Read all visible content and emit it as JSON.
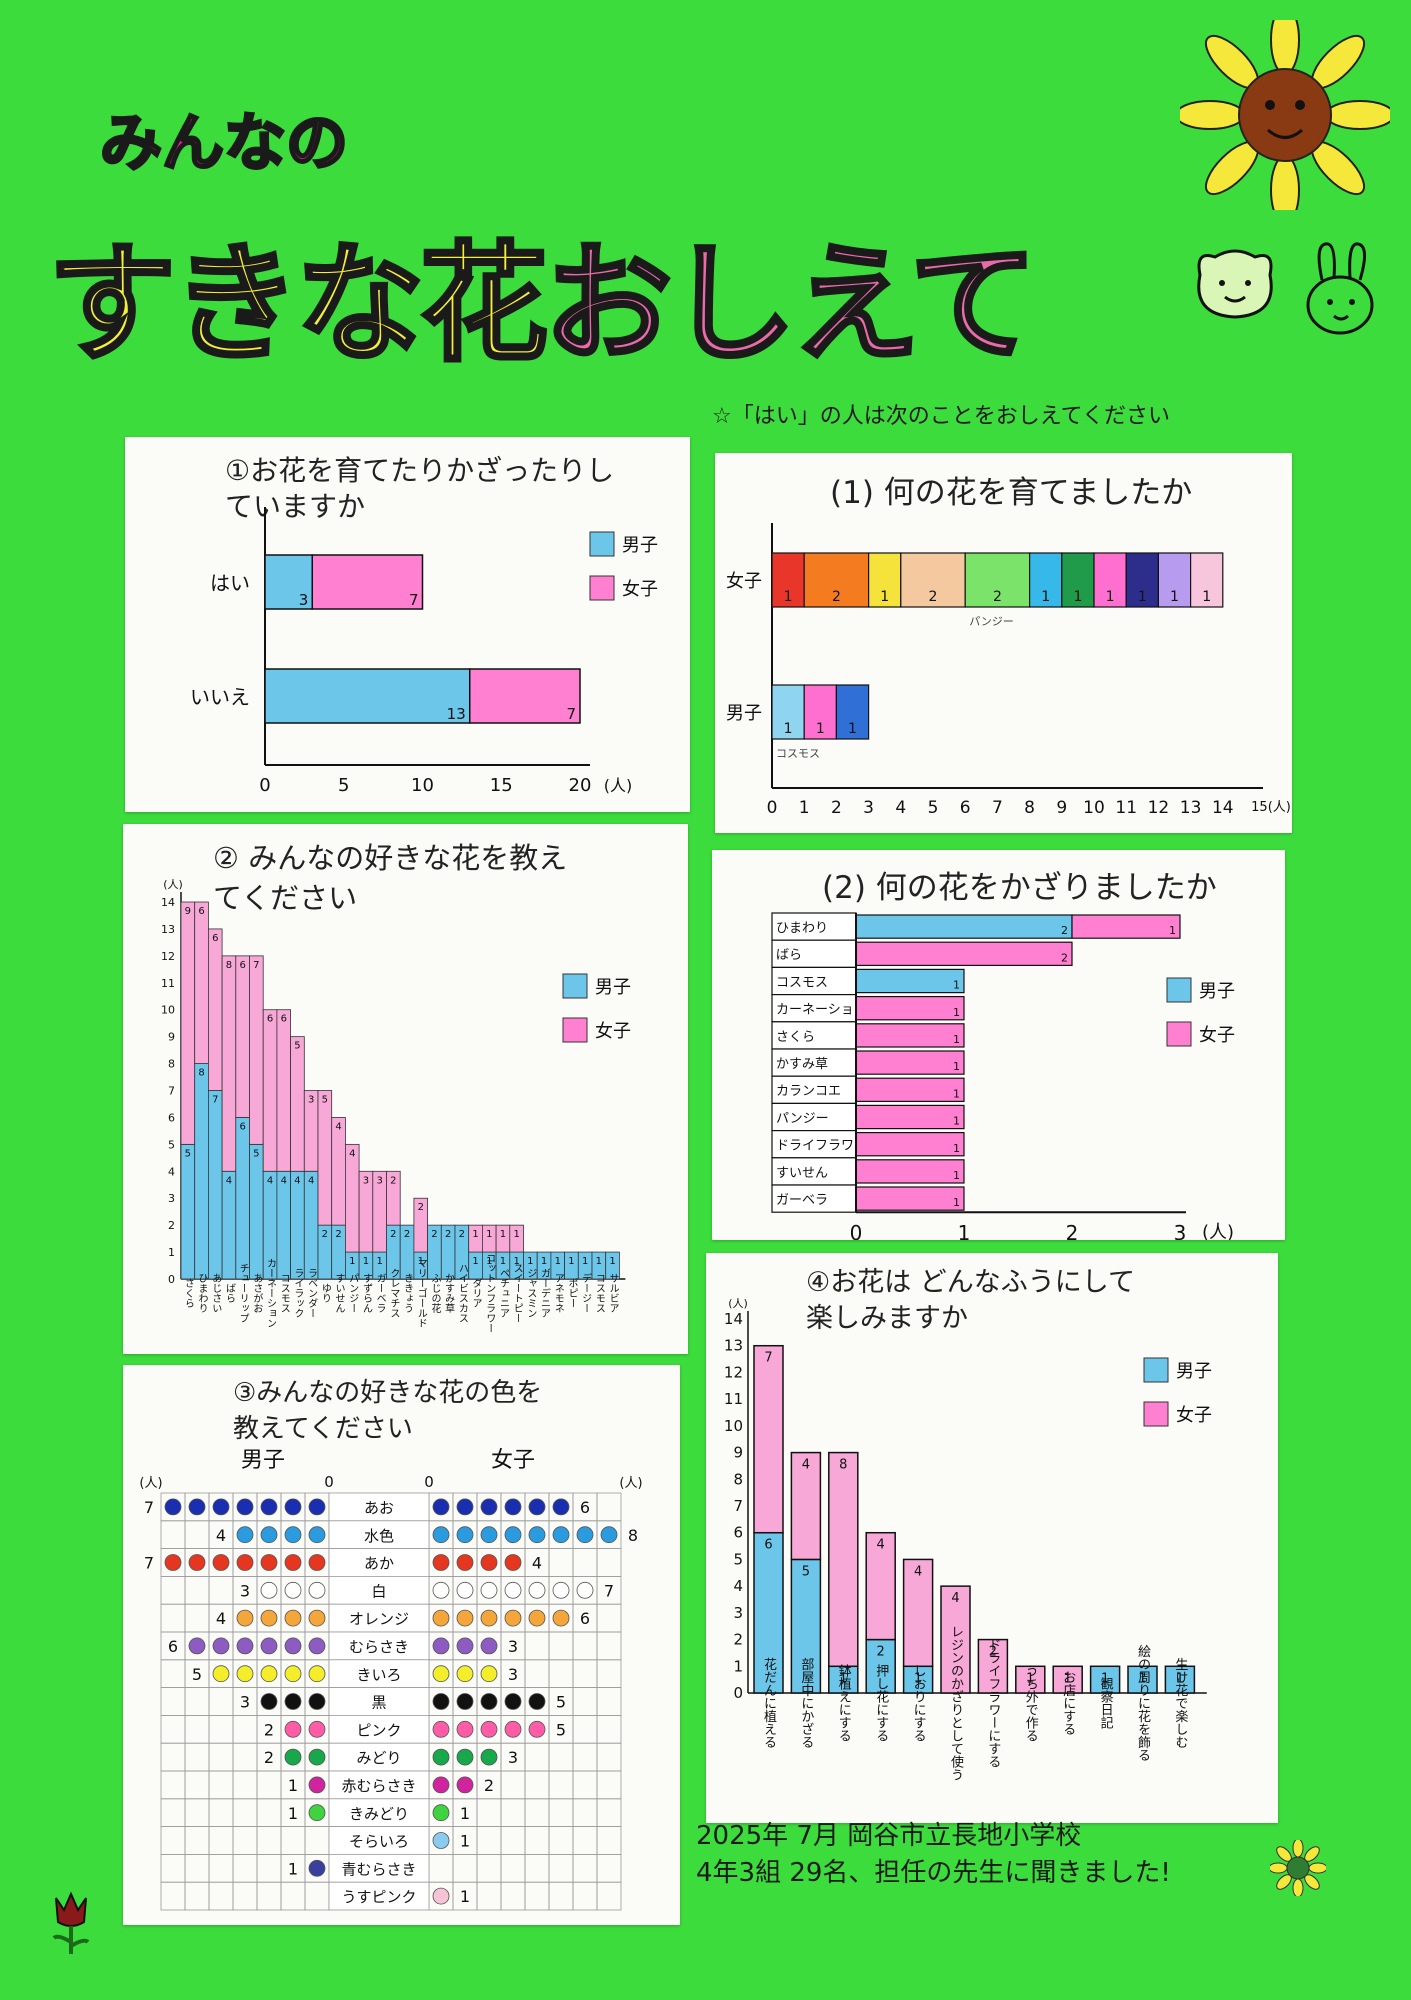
{
  "header": {
    "title_small": "みんなの",
    "title_main_a": "すきな花",
    "title_main_b": "おしえて"
  },
  "note": "☆「はい」の人は次のことをおしえてください",
  "legend": {
    "boys": "男子",
    "girls": "女子"
  },
  "unit": "(人)",
  "footer": {
    "line1": "2025年 7月 岡谷市立長地小学校",
    "line2": "4年3組 29名、担任の先生に聞きました!"
  },
  "colors": {
    "poster": "#3cdc3c",
    "boys": "#6cc6ea",
    "girls": "#ff7fd0",
    "girls_fav": "#f7a8d6"
  },
  "chart_data": [
    {
      "id": "q1",
      "type": "bar",
      "orientation": "horizontal",
      "stacked": true,
      "title": "①お花を育てたりかざったりしていますか",
      "categories": [
        "はい",
        "いいえ"
      ],
      "series": [
        {
          "name": "男子",
          "values": [
            3,
            13
          ]
        },
        {
          "name": "女子",
          "values": [
            7,
            7
          ]
        }
      ],
      "xlim": [
        0,
        20
      ],
      "xticks": [
        "0",
        "5",
        "10",
        "15",
        "20"
      ],
      "xunit": "(人)",
      "legend": "right"
    },
    {
      "id": "q1a",
      "type": "bar",
      "orientation": "horizontal",
      "stacked": true,
      "title": "(1) 何の花を育てましたか",
      "categories": [
        "女子",
        "男子"
      ],
      "girls_segments": [
        {
          "label": "",
          "value": 1,
          "color": "#e8362a"
        },
        {
          "label": "",
          "value": 2,
          "color": "#f47b20"
        },
        {
          "label": "",
          "value": 1,
          "color": "#f5e23a"
        },
        {
          "label": "",
          "value": 2,
          "color": "#f4c9a0"
        },
        {
          "label": "パンジー",
          "value": 2,
          "color": "#7be36a"
        },
        {
          "label": "",
          "value": 1,
          "color": "#36b8e8"
        },
        {
          "label": "",
          "value": 1,
          "color": "#1f9b4a"
        },
        {
          "label": "",
          "value": 1,
          "color": "#ff6fcf"
        },
        {
          "label": "",
          "value": 1,
          "color": "#2d2e8c"
        },
        {
          "label": "",
          "value": 1,
          "color": "#b79bef"
        },
        {
          "label": "",
          "value": 1,
          "color": "#f8c6dc"
        }
      ],
      "boys_segments": [
        {
          "label": "コスモス",
          "value": 1,
          "color": "#8fd5f0"
        },
        {
          "label": "",
          "value": 1,
          "color": "#ff6fcf"
        },
        {
          "label": "",
          "value": 1,
          "color": "#2f6fd6"
        }
      ],
      "xlim": [
        0,
        15
      ],
      "xticks": [
        "0",
        "1",
        "2",
        "3",
        "4",
        "5",
        "6",
        "7",
        "8",
        "9",
        "10",
        "11",
        "12",
        "13",
        "14"
      ],
      "xunit": "15(人)"
    },
    {
      "id": "q2",
      "type": "bar",
      "orientation": "vertical",
      "stacked": true,
      "title": "② みんなの好きな花を教えてください",
      "categories": [
        "さくら",
        "ひまわり",
        "あじさい",
        "ばら",
        "チューリップ",
        "あさがお",
        "カーネーション",
        "コスモス",
        "ライラック",
        "ラベンダー",
        "ゆり",
        "すいせん",
        "パンジー",
        "すずらん",
        "ガーベラ",
        "クレマチス",
        "ききょう",
        "マリーゴールド",
        "ふじの花",
        "かすみ草",
        "ハイビスカス",
        "ダリア",
        "コットンフラワー",
        "ペチュニア",
        "スイートピー",
        "ジャスミン",
        "ガーデニア",
        "アネモネ",
        "ポピー",
        "デージー",
        "コスモス",
        "サルビア"
      ],
      "series": [
        {
          "name": "男子",
          "values": [
            5,
            8,
            7,
            4,
            6,
            5,
            4,
            4,
            4,
            4,
            2,
            2,
            1,
            1,
            1,
            2,
            2,
            1,
            2,
            2,
            2,
            1,
            1,
            1,
            1,
            1,
            1,
            1,
            1,
            1,
            1,
            1
          ]
        },
        {
          "name": "女子",
          "values": [
            9,
            6,
            6,
            8,
            6,
            7,
            6,
            6,
            5,
            3,
            5,
            4,
            4,
            3,
            3,
            2,
            0,
            2,
            0,
            0,
            0,
            1,
            1,
            1,
            1,
            0,
            0,
            0,
            0,
            0,
            0,
            0
          ]
        }
      ],
      "ylim": [
        0,
        14
      ],
      "yunit": "(人)",
      "legend": "right"
    },
    {
      "id": "q2a",
      "type": "bar",
      "orientation": "horizontal",
      "stacked": true,
      "title": "(2) 何の花をかざりましたか",
      "categories": [
        "ひまわり",
        "ばら",
        "コスモス",
        "カーネーション",
        "さくら",
        "かすみ草",
        "カランコエ",
        "パンジー",
        "ドライフラワー",
        "すいせん",
        "ガーベラ"
      ],
      "series": [
        {
          "name": "男子",
          "values": [
            2,
            0,
            1,
            0,
            0,
            0,
            0,
            0,
            0,
            0,
            0
          ]
        },
        {
          "name": "女子",
          "values": [
            1,
            2,
            0,
            1,
            1,
            1,
            1,
            1,
            1,
            1,
            1
          ]
        }
      ],
      "xlim": [
        0,
        3
      ],
      "xticks": [
        "0",
        "1",
        "2",
        "3"
      ],
      "xunit": "(人)",
      "legend": "right"
    },
    {
      "id": "q3",
      "type": "table",
      "title": "③みんなの好きな花の色を教えてください",
      "left_label": "男子",
      "right_label": "女子",
      "zero": "0",
      "rows": [
        {
          "color_name": "あお",
          "dot": "#1a2fb0",
          "boys": 7,
          "girls": 6
        },
        {
          "color_name": "水色",
          "dot": "#2b9be0",
          "boys": 4,
          "girls": 8
        },
        {
          "color_name": "あか",
          "dot": "#e5361f",
          "boys": 7,
          "girls": 4
        },
        {
          "color_name": "白",
          "dot": "#ffffff",
          "boys": 3,
          "girls": 7
        },
        {
          "color_name": "オレンジ",
          "dot": "#f5a63a",
          "boys": 4,
          "girls": 6
        },
        {
          "color_name": "むらさき",
          "dot": "#8d5bc2",
          "boys": 6,
          "girls": 3
        },
        {
          "color_name": "きいろ",
          "dot": "#f4ee2a",
          "boys": 5,
          "girls": 3
        },
        {
          "color_name": "黒",
          "dot": "#111111",
          "boys": 3,
          "girls": 5
        },
        {
          "color_name": "ピンク",
          "dot": "#ff5ca8",
          "boys": 2,
          "girls": 5
        },
        {
          "color_name": "みどり",
          "dot": "#16a84a",
          "boys": 2,
          "girls": 3
        },
        {
          "color_name": "赤むらさき",
          "dot": "#d0249f",
          "boys": 1,
          "girls": 2
        },
        {
          "color_name": "きみどり",
          "dot": "#3fd43f",
          "boys": 1,
          "girls": 1
        },
        {
          "color_name": "そらいろ",
          "dot": "#8ccbf0",
          "boys": 0,
          "girls": 1
        },
        {
          "color_name": "青むらさき",
          "dot": "#3a3f9e",
          "boys": 1,
          "girls": 0
        },
        {
          "color_name": "うすピンク",
          "dot": "#f7c3d6",
          "boys": 0,
          "girls": 1
        }
      ]
    },
    {
      "id": "q4",
      "type": "bar",
      "orientation": "vertical",
      "stacked": true,
      "title": "④お花は どんなふうにして 楽しみますか",
      "categories": [
        "花だんに植える",
        "部屋中にかざる",
        "鉢植えにする",
        "押し花にする",
        "しおりにする",
        "レジンのかざりとして使う",
        "ドライフラワーにする",
        "うち外で作る",
        "お店にする",
        "観察日記",
        "絵の周りに花を飾る",
        "生け花で楽しむ"
      ],
      "series": [
        {
          "name": "男子",
          "values": [
            6,
            5,
            1,
            2,
            1,
            0,
            0,
            0,
            0,
            1,
            1,
            1
          ]
        },
        {
          "name": "女子",
          "values": [
            7,
            4,
            8,
            4,
            4,
            4,
            2,
            1,
            1,
            0,
            0,
            0
          ]
        }
      ],
      "ylim": [
        0,
        14
      ],
      "yunit": "(人)",
      "legend": "right"
    }
  ]
}
